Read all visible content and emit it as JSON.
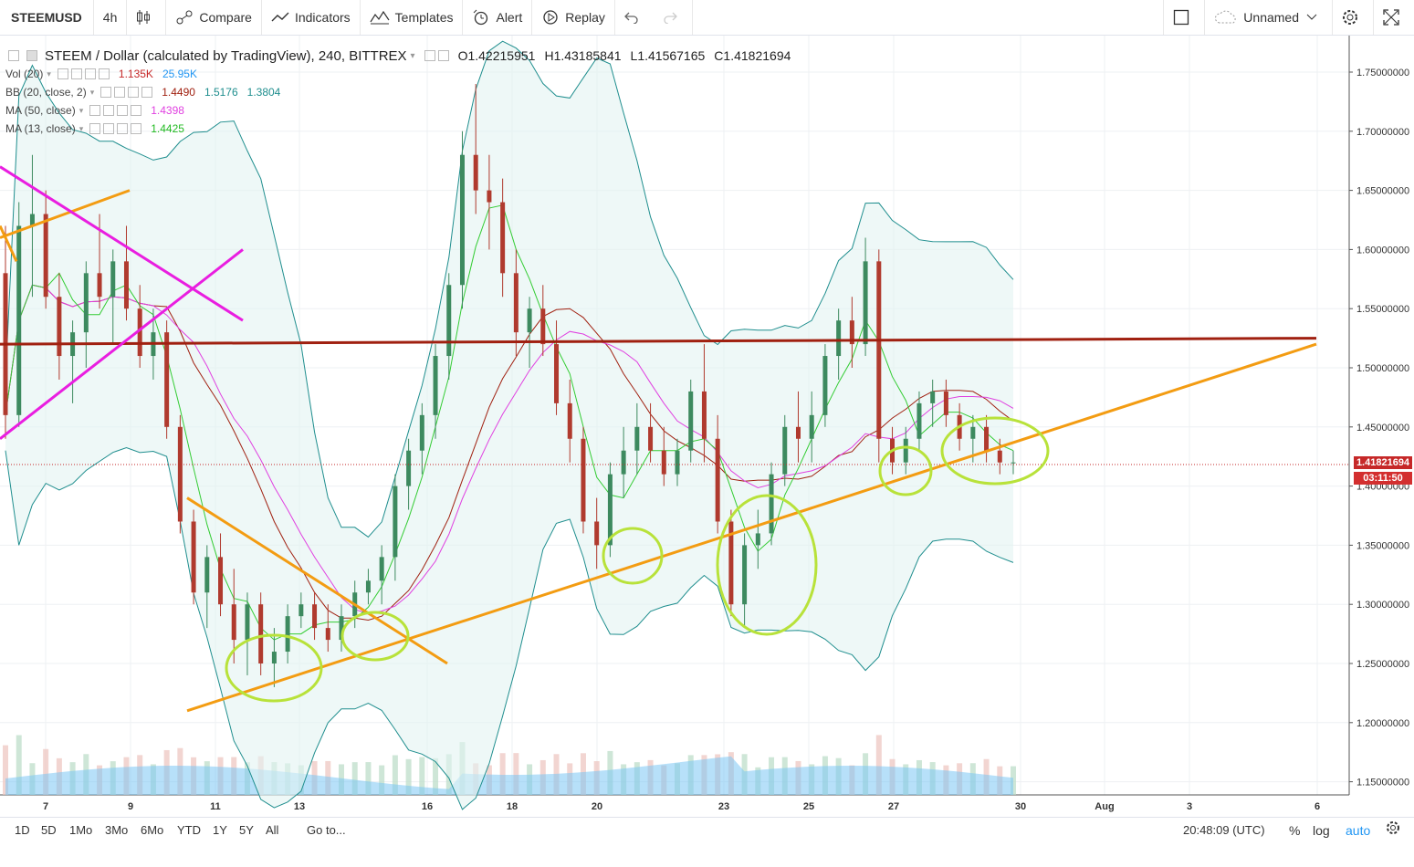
{
  "toolbar": {
    "symbol": "STEEMUSD",
    "interval": "4h",
    "compare": "Compare",
    "indicators": "Indicators",
    "templates": "Templates",
    "alert": "Alert",
    "replay": "Replay",
    "layout_name": "Unnamed"
  },
  "legend": {
    "title": "STEEM / Dollar (calculated by TradingView), 240, BITTREX",
    "ohlc": {
      "o_label": "O",
      "o": "1.42215951",
      "h_label": "H",
      "h": "1.43185841",
      "l_label": "L",
      "l": "1.41567165",
      "c_label": "C",
      "c": "1.41821694"
    },
    "vol": {
      "label": "Vol (20)",
      "v1": "1.135K",
      "v2": "25.95K"
    },
    "bb": {
      "label": "BB (20, close, 2)",
      "v1": "1.4490",
      "v2": "1.5176",
      "v3": "1.3804"
    },
    "ma50": {
      "label": "MA (50, close)",
      "v": "1.4398"
    },
    "ma13": {
      "label": "MA (13, close)",
      "v": "1.4425"
    }
  },
  "price_tags": {
    "last_price": "1.41821694",
    "countdown": "03:11:50"
  },
  "bottom": {
    "ranges": [
      "1D",
      "5D",
      "1Mo",
      "3Mo",
      "6Mo",
      "YTD",
      "1Y",
      "5Y",
      "All"
    ],
    "goto": "Go to...",
    "time": "20:48:09 (UTC)",
    "percent": "%",
    "log": "log",
    "auto": "auto"
  },
  "colors": {
    "up": "#3d8a5f",
    "down": "#b03a2e",
    "bb": "#1f8e8e",
    "ma50": "#e040e0",
    "ma13": "#33cc33",
    "resistance": "#a02010",
    "trend": "#f39c12",
    "pattern": "#e91ee0",
    "highlight": "#b8e23a",
    "volume": "#7cc7f4"
  },
  "chart_data": {
    "type": "candlestick",
    "symbol": "STEEMUSD",
    "interval": "240",
    "y_ticks": [
      "1.75000000",
      "1.70000000",
      "1.65000000",
      "1.60000000",
      "1.55000000",
      "1.50000000",
      "1.45000000",
      "1.40000000",
      "1.35000000",
      "1.30000000",
      "1.25000000",
      "1.20000000",
      "1.15000000"
    ],
    "x_ticks": [
      "7",
      "9",
      "11",
      "13",
      "16",
      "18",
      "20",
      "23",
      "25",
      "27",
      "30",
      "Aug",
      "3",
      "6"
    ],
    "ylim": [
      1.14,
      1.78
    ],
    "candles": [
      [
        1.58,
        1.62,
        1.44,
        1.46
      ],
      [
        1.46,
        1.64,
        1.45,
        1.62
      ],
      [
        1.62,
        1.68,
        1.56,
        1.63
      ],
      [
        1.63,
        1.65,
        1.55,
        1.56
      ],
      [
        1.56,
        1.58,
        1.49,
        1.51
      ],
      [
        1.51,
        1.54,
        1.47,
        1.53
      ],
      [
        1.53,
        1.59,
        1.5,
        1.58
      ],
      [
        1.58,
        1.63,
        1.55,
        1.56
      ],
      [
        1.56,
        1.6,
        1.52,
        1.59
      ],
      [
        1.59,
        1.62,
        1.54,
        1.55
      ],
      [
        1.55,
        1.57,
        1.5,
        1.51
      ],
      [
        1.51,
        1.55,
        1.49,
        1.53
      ],
      [
        1.53,
        1.54,
        1.44,
        1.45
      ],
      [
        1.45,
        1.46,
        1.36,
        1.37
      ],
      [
        1.37,
        1.38,
        1.3,
        1.31
      ],
      [
        1.31,
        1.35,
        1.28,
        1.34
      ],
      [
        1.34,
        1.36,
        1.29,
        1.3
      ],
      [
        1.3,
        1.33,
        1.25,
        1.27
      ],
      [
        1.27,
        1.31,
        1.24,
        1.3
      ],
      [
        1.3,
        1.31,
        1.24,
        1.25
      ],
      [
        1.25,
        1.28,
        1.23,
        1.26
      ],
      [
        1.26,
        1.3,
        1.25,
        1.29
      ],
      [
        1.29,
        1.31,
        1.28,
        1.3
      ],
      [
        1.3,
        1.31,
        1.27,
        1.28
      ],
      [
        1.28,
        1.3,
        1.26,
        1.27
      ],
      [
        1.27,
        1.3,
        1.26,
        1.29
      ],
      [
        1.29,
        1.32,
        1.28,
        1.31
      ],
      [
        1.31,
        1.33,
        1.3,
        1.32
      ],
      [
        1.32,
        1.35,
        1.3,
        1.34
      ],
      [
        1.34,
        1.41,
        1.32,
        1.4
      ],
      [
        1.4,
        1.44,
        1.38,
        1.43
      ],
      [
        1.43,
        1.47,
        1.41,
        1.46
      ],
      [
        1.46,
        1.52,
        1.44,
        1.51
      ],
      [
        1.51,
        1.58,
        1.49,
        1.57
      ],
      [
        1.57,
        1.7,
        1.55,
        1.68
      ],
      [
        1.68,
        1.74,
        1.63,
        1.65
      ],
      [
        1.65,
        1.68,
        1.6,
        1.64
      ],
      [
        1.64,
        1.66,
        1.56,
        1.58
      ],
      [
        1.58,
        1.6,
        1.51,
        1.53
      ],
      [
        1.53,
        1.56,
        1.5,
        1.55
      ],
      [
        1.55,
        1.57,
        1.51,
        1.52
      ],
      [
        1.52,
        1.54,
        1.46,
        1.47
      ],
      [
        1.47,
        1.49,
        1.42,
        1.44
      ],
      [
        1.44,
        1.45,
        1.36,
        1.37
      ],
      [
        1.37,
        1.39,
        1.33,
        1.35
      ],
      [
        1.35,
        1.42,
        1.34,
        1.41
      ],
      [
        1.41,
        1.45,
        1.39,
        1.43
      ],
      [
        1.43,
        1.47,
        1.41,
        1.45
      ],
      [
        1.45,
        1.47,
        1.42,
        1.43
      ],
      [
        1.43,
        1.45,
        1.4,
        1.41
      ],
      [
        1.41,
        1.44,
        1.4,
        1.43
      ],
      [
        1.43,
        1.49,
        1.42,
        1.48
      ],
      [
        1.48,
        1.52,
        1.42,
        1.44
      ],
      [
        1.44,
        1.46,
        1.36,
        1.37
      ],
      [
        1.37,
        1.38,
        1.29,
        1.3
      ],
      [
        1.3,
        1.36,
        1.28,
        1.35
      ],
      [
        1.35,
        1.38,
        1.33,
        1.36
      ],
      [
        1.36,
        1.42,
        1.35,
        1.41
      ],
      [
        1.41,
        1.46,
        1.4,
        1.45
      ],
      [
        1.45,
        1.48,
        1.42,
        1.44
      ],
      [
        1.44,
        1.48,
        1.42,
        1.46
      ],
      [
        1.46,
        1.52,
        1.45,
        1.51
      ],
      [
        1.51,
        1.55,
        1.49,
        1.54
      ],
      [
        1.54,
        1.56,
        1.5,
        1.52
      ],
      [
        1.52,
        1.61,
        1.51,
        1.59
      ],
      [
        1.59,
        1.6,
        1.42,
        1.44
      ],
      [
        1.44,
        1.45,
        1.41,
        1.42
      ],
      [
        1.42,
        1.45,
        1.41,
        1.44
      ],
      [
        1.44,
        1.48,
        1.43,
        1.47
      ],
      [
        1.47,
        1.49,
        1.45,
        1.48
      ],
      [
        1.48,
        1.49,
        1.45,
        1.46
      ],
      [
        1.46,
        1.47,
        1.43,
        1.44
      ],
      [
        1.44,
        1.46,
        1.42,
        1.45
      ],
      [
        1.45,
        1.46,
        1.42,
        1.43
      ],
      [
        1.43,
        1.44,
        1.41,
        1.42
      ],
      [
        1.42,
        1.43,
        1.41,
        1.42
      ]
    ],
    "volume_color_note": "volume histogram with 20-period average area",
    "lines": {
      "resistance": "horizontal at ~1.52",
      "support_trend": "rising line from ~1.21 (Jul 11) to ~1.52 (Aug 6)"
    }
  }
}
